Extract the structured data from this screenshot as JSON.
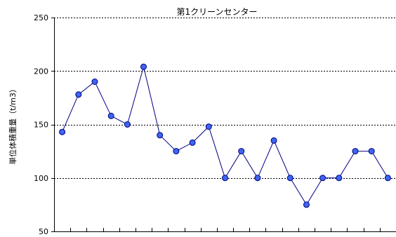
{
  "chart_data": {
    "type": "line",
    "title": "第1クリーンセンター",
    "xlabel": "",
    "ylabel": "単位体積重量（t/m3）",
    "ylim": [
      50,
      250
    ],
    "yticks": [
      50,
      100,
      150,
      200,
      250
    ],
    "grid": true,
    "legend": "none",
    "x": [
      1,
      2,
      3,
      4,
      5,
      6,
      7,
      8,
      9,
      10,
      11,
      12,
      13,
      14,
      15,
      16,
      17,
      18,
      19,
      20,
      21
    ],
    "series": [
      {
        "name": "",
        "values": [
          143,
          178,
          190,
          158,
          150,
          204,
          140,
          125,
          133,
          148,
          100,
          125,
          100,
          135,
          100,
          75,
          100,
          100,
          125,
          125,
          100
        ],
        "line_color": "#000080",
        "marker_color": "#3d66f0",
        "marker_stroke": "#000080"
      }
    ]
  }
}
